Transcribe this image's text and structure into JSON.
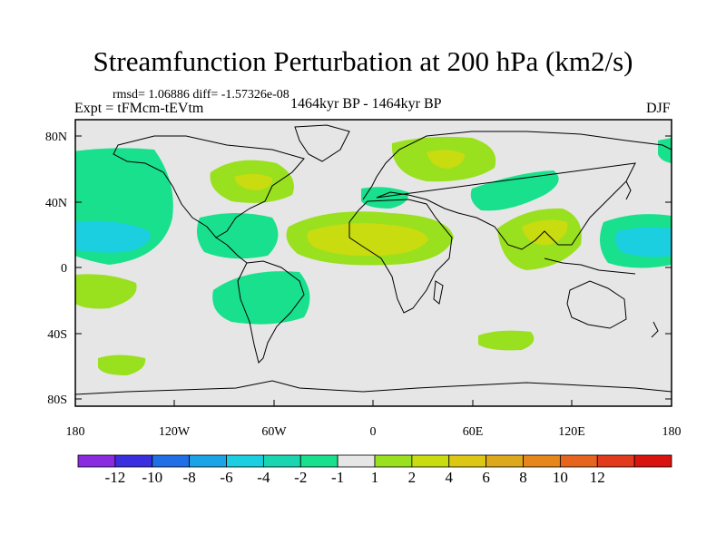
{
  "title": "Streamfunction Perturbation at 200 hPa (km2/s)",
  "stats": "rmsd= 1.06886  diff= -1.57326e-08",
  "experiment": "Expt = tFMcm-tEVtm",
  "period": "1464kyr BP - 1464kyr BP",
  "season": "DJF",
  "map": {
    "lat_ticks": [
      "80N",
      "40N",
      "0",
      "40S",
      "80S"
    ],
    "lon_ticks": [
      "180",
      "120W",
      "60W",
      "0",
      "60E",
      "120E",
      "180"
    ],
    "background": "#e6e6e6"
  },
  "colorbar": {
    "colors": [
      "#8a2be2",
      "#3a2ee0",
      "#1f6fe6",
      "#1aa3e6",
      "#1ccfe0",
      "#1ad6b0",
      "#19e08c",
      "#e6e6e6",
      "#99e01f",
      "#c8dc10",
      "#dcc814",
      "#dca81c",
      "#e6861c",
      "#e6641e",
      "#e23a1c",
      "#d9140f"
    ],
    "labels": [
      "-12",
      "-10",
      "-8",
      "-6",
      "-4",
      "-2",
      "-1",
      "1",
      "2",
      "4",
      "6",
      "8",
      "10",
      "12"
    ]
  }
}
